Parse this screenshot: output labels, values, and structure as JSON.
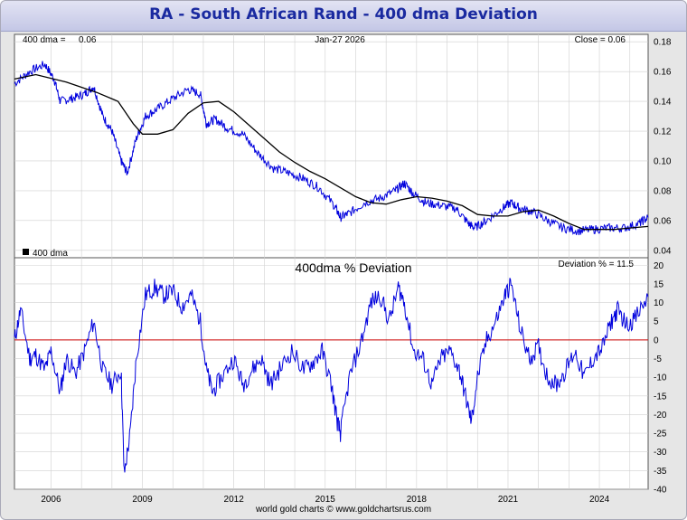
{
  "title": "RA  -  South African Rand - 400 dma Deviation",
  "footer": "world gold charts © www.goldchartsrus.com",
  "colors": {
    "price": "#0000dd",
    "dma": "#000000",
    "deviation": "#0000dd",
    "zero_line": "#cc0000",
    "grid": "#d0d0d0"
  },
  "chart_data": [
    {
      "type": "line",
      "name": "price-panel",
      "header": {
        "left_label": "400 dma =",
        "left_value": "0.06",
        "date": "Jan-27  2026",
        "right": "Close = 0.06"
      },
      "legend": [
        {
          "label": "400 dma",
          "color": "#000000"
        }
      ],
      "ylim": [
        0.035,
        0.185
      ],
      "y_ticks": [
        "0.18",
        "0.16",
        "0.14",
        "0.12",
        "0.10",
        "0.08",
        "0.06",
        "0.04"
      ],
      "x_range": [
        2005.3,
        2026.1
      ],
      "series": [
        {
          "name": "RA",
          "x": [
            2005.3,
            2005.8,
            2006.3,
            2006.6,
            2006.8,
            2007.2,
            2007.6,
            2007.9,
            2008.2,
            2008.5,
            2008.8,
            2009.0,
            2009.3,
            2009.6,
            2010.0,
            2010.5,
            2011.0,
            2011.4,
            2011.6,
            2011.9,
            2012.3,
            2012.8,
            2013.3,
            2013.8,
            2014.3,
            2014.8,
            2015.3,
            2015.8,
            2016.0,
            2016.3,
            2016.8,
            2017.3,
            2017.8,
            2018.1,
            2018.4,
            2018.8,
            2019.3,
            2019.8,
            2020.2,
            2020.4,
            2020.8,
            2021.3,
            2021.6,
            2021.9,
            2022.3,
            2022.8,
            2023.3,
            2023.8,
            2024.3,
            2024.8,
            2025.3,
            2025.8,
            2026.1
          ],
          "y": [
            0.152,
            0.16,
            0.165,
            0.155,
            0.14,
            0.142,
            0.145,
            0.15,
            0.13,
            0.12,
            0.1,
            0.092,
            0.115,
            0.13,
            0.135,
            0.142,
            0.148,
            0.145,
            0.125,
            0.128,
            0.122,
            0.118,
            0.105,
            0.095,
            0.092,
            0.088,
            0.082,
            0.07,
            0.062,
            0.065,
            0.072,
            0.075,
            0.08,
            0.085,
            0.078,
            0.072,
            0.07,
            0.068,
            0.058,
            0.055,
            0.06,
            0.068,
            0.072,
            0.068,
            0.066,
            0.06,
            0.055,
            0.053,
            0.054,
            0.055,
            0.055,
            0.058,
            0.062
          ]
        },
        {
          "name": "400 dma",
          "x": [
            2005.3,
            2006.0,
            2007.0,
            2008.0,
            2008.7,
            2009.2,
            2009.5,
            2010.0,
            2010.5,
            2011.0,
            2011.5,
            2012.0,
            2012.5,
            2013.0,
            2013.5,
            2014.0,
            2014.5,
            2015.0,
            2015.5,
            2016.0,
            2016.5,
            2017.0,
            2017.5,
            2018.0,
            2018.5,
            2019.0,
            2019.5,
            2020.0,
            2020.5,
            2021.0,
            2021.5,
            2022.0,
            2022.5,
            2023.0,
            2023.5,
            2024.0,
            2024.5,
            2025.0,
            2025.5,
            2026.1
          ],
          "y": [
            0.155,
            0.158,
            0.153,
            0.146,
            0.14,
            0.125,
            0.118,
            0.118,
            0.121,
            0.132,
            0.139,
            0.14,
            0.133,
            0.124,
            0.115,
            0.106,
            0.099,
            0.093,
            0.088,
            0.082,
            0.076,
            0.072,
            0.071,
            0.074,
            0.076,
            0.075,
            0.073,
            0.07,
            0.064,
            0.063,
            0.063,
            0.066,
            0.067,
            0.063,
            0.058,
            0.054,
            0.054,
            0.054,
            0.055,
            0.056
          ]
        }
      ]
    },
    {
      "type": "line",
      "name": "deviation-panel",
      "title": "400dma  %  Deviation",
      "header_right": "Deviation % = 11.5",
      "ylim": [
        -40,
        22
      ],
      "y_ticks": [
        "20",
        "15",
        "10",
        "5",
        "0",
        "-5",
        "-10",
        "-15",
        "-20",
        "-25",
        "-30",
        "-35",
        "-40"
      ],
      "x_ticks": [
        "2006",
        "2009",
        "2012",
        "2015",
        "2018",
        "2021",
        "2024"
      ],
      "x_range": [
        2005.3,
        2026.1
      ],
      "series": [
        {
          "name": "Deviation %",
          "x": [
            2005.3,
            2005.5,
            2005.8,
            2006.0,
            2006.3,
            2006.5,
            2006.8,
            2007.0,
            2007.3,
            2007.6,
            2007.9,
            2008.2,
            2008.5,
            2008.8,
            2008.9,
            2009.1,
            2009.3,
            2009.6,
            2009.9,
            2010.2,
            2010.5,
            2010.8,
            2011.1,
            2011.4,
            2011.6,
            2011.8,
            2012.1,
            2012.5,
            2012.8,
            2013.1,
            2013.4,
            2013.7,
            2014.0,
            2014.4,
            2014.8,
            2015.1,
            2015.4,
            2015.7,
            2015.9,
            2016.0,
            2016.3,
            2016.7,
            2017.0,
            2017.3,
            2017.6,
            2017.9,
            2018.1,
            2018.4,
            2018.7,
            2019.0,
            2019.3,
            2019.6,
            2019.9,
            2020.1,
            2020.3,
            2020.5,
            2020.8,
            2021.1,
            2021.4,
            2021.6,
            2021.9,
            2022.2,
            2022.5,
            2022.8,
            2023.1,
            2023.4,
            2023.7,
            2024.0,
            2024.3,
            2024.6,
            2024.9,
            2025.1,
            2025.4,
            2025.7,
            2026.1
          ],
          "y": [
            0,
            8,
            -5,
            -4,
            -8,
            -3,
            -14,
            -5,
            -9,
            -3,
            5,
            -8,
            -12,
            -8,
            -36,
            -25,
            -5,
            12,
            14,
            12,
            13,
            9,
            12,
            5,
            -8,
            -14,
            -10,
            -5,
            -12,
            -8,
            -5,
            -12,
            -8,
            -3,
            -8,
            -6,
            -3,
            -12,
            -22,
            -25,
            -10,
            0,
            10,
            12,
            5,
            14,
            10,
            -3,
            -5,
            -12,
            -5,
            -3,
            -8,
            -15,
            -22,
            -10,
            0,
            5,
            12,
            15,
            3,
            -5,
            -2,
            -10,
            -12,
            -8,
            -3,
            -10,
            -5,
            -2,
            5,
            8,
            4,
            6,
            11.5
          ]
        }
      ]
    }
  ]
}
